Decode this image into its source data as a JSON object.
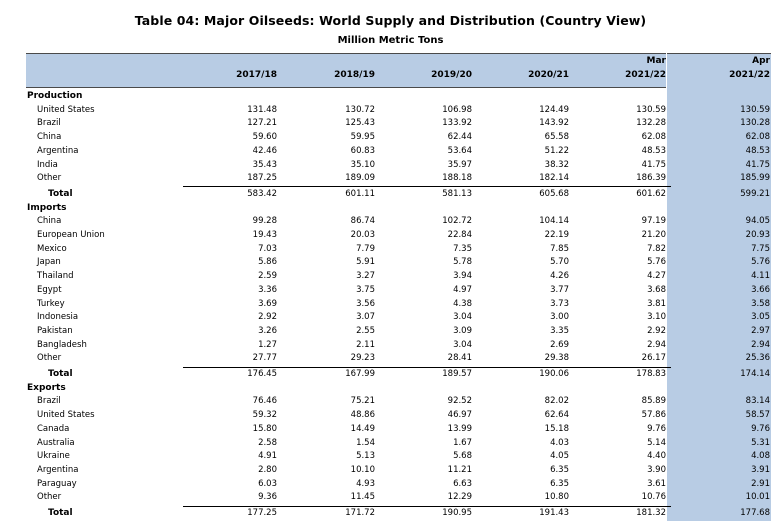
{
  "title": "Table 04: Major Oilseeds: World Supply and Distribution (Country View)",
  "subtitle": "Million Metric Tons",
  "columns": [
    {
      "top": "",
      "bottom": "2017/18"
    },
    {
      "top": "",
      "bottom": "2018/19"
    },
    {
      "top": "",
      "bottom": "2019/20"
    },
    {
      "top": "",
      "bottom": "2020/21"
    },
    {
      "top": "Mar",
      "bottom": "2021/22"
    },
    {
      "top": "Apr",
      "bottom": "2021/22"
    }
  ],
  "sections": [
    {
      "name": "Production",
      "rows": [
        {
          "label": "United States",
          "values": [
            "131.48",
            "130.72",
            "106.98",
            "124.49",
            "130.59",
            "130.59"
          ]
        },
        {
          "label": "Brazil",
          "values": [
            "127.21",
            "125.43",
            "133.92",
            "143.92",
            "132.28",
            "130.28"
          ]
        },
        {
          "label": "China",
          "values": [
            "59.60",
            "59.95",
            "62.44",
            "65.58",
            "62.08",
            "62.08"
          ]
        },
        {
          "label": "Argentina",
          "values": [
            "42.46",
            "60.83",
            "53.64",
            "51.22",
            "48.53",
            "48.53"
          ]
        },
        {
          "label": "India",
          "values": [
            "35.43",
            "35.10",
            "35.97",
            "38.32",
            "41.75",
            "41.75"
          ]
        },
        {
          "label": "Other",
          "values": [
            "187.25",
            "189.09",
            "188.18",
            "182.14",
            "186.39",
            "185.99"
          ]
        }
      ],
      "total": {
        "label": "Total",
        "values": [
          "583.42",
          "601.11",
          "581.13",
          "605.68",
          "601.62",
          "599.21"
        ]
      }
    },
    {
      "name": "Imports",
      "rows": [
        {
          "label": "China",
          "values": [
            "99.28",
            "86.74",
            "102.72",
            "104.14",
            "97.19",
            "94.05"
          ]
        },
        {
          "label": "European Union",
          "values": [
            "19.43",
            "20.03",
            "22.84",
            "22.19",
            "21.20",
            "20.93"
          ]
        },
        {
          "label": "Mexico",
          "values": [
            "7.03",
            "7.79",
            "7.35",
            "7.85",
            "7.82",
            "7.75"
          ]
        },
        {
          "label": "Japan",
          "values": [
            "5.86",
            "5.91",
            "5.78",
            "5.70",
            "5.76",
            "5.76"
          ]
        },
        {
          "label": "Thailand",
          "values": [
            "2.59",
            "3.27",
            "3.94",
            "4.26",
            "4.27",
            "4.11"
          ]
        },
        {
          "label": "Egypt",
          "values": [
            "3.36",
            "3.75",
            "4.97",
            "3.77",
            "3.68",
            "3.66"
          ]
        },
        {
          "label": "Turkey",
          "values": [
            "3.69",
            "3.56",
            "4.38",
            "3.73",
            "3.81",
            "3.58"
          ]
        },
        {
          "label": "Indonesia",
          "values": [
            "2.92",
            "3.07",
            "3.04",
            "3.00",
            "3.10",
            "3.05"
          ]
        },
        {
          "label": "Pakistan",
          "values": [
            "3.26",
            "2.55",
            "3.09",
            "3.35",
            "2.92",
            "2.97"
          ]
        },
        {
          "label": "Bangladesh",
          "values": [
            "1.27",
            "2.11",
            "3.04",
            "2.69",
            "2.94",
            "2.94"
          ]
        },
        {
          "label": "Other",
          "values": [
            "27.77",
            "29.23",
            "28.41",
            "29.38",
            "26.17",
            "25.36"
          ]
        }
      ],
      "total": {
        "label": "Total",
        "values": [
          "176.45",
          "167.99",
          "189.57",
          "190.06",
          "178.83",
          "174.14"
        ]
      }
    },
    {
      "name": "Exports",
      "rows": [
        {
          "label": "Brazil",
          "values": [
            "76.46",
            "75.21",
            "92.52",
            "82.02",
            "85.89",
            "83.14"
          ]
        },
        {
          "label": "United States",
          "values": [
            "59.32",
            "48.86",
            "46.97",
            "62.64",
            "57.86",
            "58.57"
          ]
        },
        {
          "label": "Canada",
          "values": [
            "15.80",
            "14.49",
            "13.99",
            "15.18",
            "9.76",
            "9.76"
          ]
        },
        {
          "label": "Australia",
          "values": [
            "2.58",
            "1.54",
            "1.67",
            "4.03",
            "5.14",
            "5.31"
          ]
        },
        {
          "label": "Ukraine",
          "values": [
            "4.91",
            "5.13",
            "5.68",
            "4.05",
            "4.40",
            "4.08"
          ]
        },
        {
          "label": "Argentina",
          "values": [
            "2.80",
            "10.10",
            "11.21",
            "6.35",
            "3.90",
            "3.91"
          ]
        },
        {
          "label": "Paraguay",
          "values": [
            "6.03",
            "4.93",
            "6.63",
            "6.35",
            "3.61",
            "2.91"
          ]
        },
        {
          "label": "Other",
          "values": [
            "9.36",
            "11.45",
            "12.29",
            "10.80",
            "10.76",
            "10.01"
          ]
        }
      ],
      "total": {
        "label": "Total",
        "values": [
          "177.25",
          "171.72",
          "190.95",
          "191.43",
          "181.32",
          "177.68"
        ]
      }
    }
  ]
}
